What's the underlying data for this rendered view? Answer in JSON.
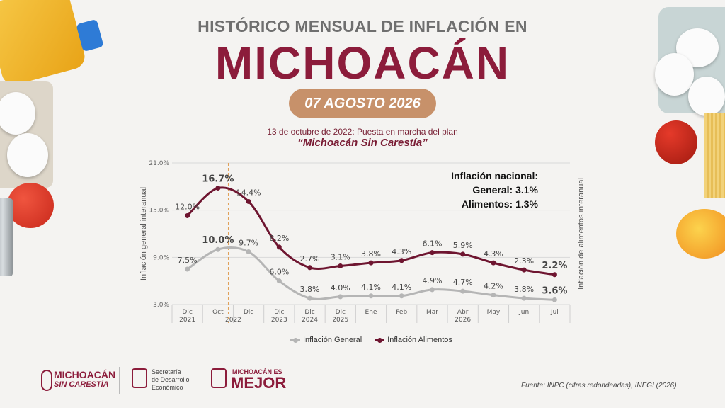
{
  "header": {
    "title_line1": "HISTÓRICO MENSUAL DE INFLACIÓN EN",
    "title_line2": "MICHOACÁN",
    "date": "07 AGOSTO 2026",
    "note_line1": "13 de octubre de 2022: Puesta en marcha del plan",
    "note_line2": "“Michoacán Sin Carestía”"
  },
  "national": {
    "title": "Inflación nacional:",
    "general": "General: 3.1%",
    "food": "Alimentos: 1.3%"
  },
  "colors": {
    "general": "#b5b5b5",
    "food": "#6e1530",
    "accent": "#8c1c3b",
    "marker_line": "#e0a15a"
  },
  "chart_data": {
    "type": "line",
    "ylabel_left": "Inflación general interanual",
    "ylabel_right": "Inflación de alimentos interanual",
    "ylim": [
      3.0,
      21.0
    ],
    "y_ticks": [
      "3.0%",
      "9.0%",
      "15.0%",
      "21.0%"
    ],
    "categories": [
      {
        "top": "Dic",
        "bottom": "2021"
      },
      {
        "top": "Oct",
        "bottom": ""
      },
      {
        "top": "Dic",
        "bottom": ""
      },
      {
        "top": "Dic",
        "bottom": "2023"
      },
      {
        "top": "Dic",
        "bottom": "2024"
      },
      {
        "top": "Dic",
        "bottom": "2025"
      },
      {
        "top": "Ene",
        "bottom": ""
      },
      {
        "top": "Feb",
        "bottom": ""
      },
      {
        "top": "Mar",
        "bottom": ""
      },
      {
        "top": "Abr",
        "bottom": "2026"
      },
      {
        "top": "May",
        "bottom": ""
      },
      {
        "top": "Jun",
        "bottom": ""
      },
      {
        "top": "Jul",
        "bottom": ""
      }
    ],
    "year_2022_label": "2022",
    "marker_category": "Oct",
    "series": [
      {
        "name": "Inflación General",
        "values": [
          7.5,
          10.0,
          9.7,
          6.0,
          3.8,
          4.0,
          4.1,
          4.1,
          4.9,
          4.7,
          4.2,
          3.8,
          3.6
        ],
        "labels": [
          "7.5%",
          "10.0%",
          "9.7%",
          "6.0%",
          "3.8%",
          "4.0%",
          "4.1%",
          "4.1%",
          "4.9%",
          "4.7%",
          "4.2%",
          "3.8%",
          "3.6%"
        ]
      },
      {
        "name": "Inflación Alimentos",
        "values": [
          14.3,
          17.8,
          16.1,
          10.3,
          7.7,
          7.9,
          8.3,
          8.6,
          9.6,
          9.4,
          8.3,
          7.4,
          6.8
        ],
        "labels": [
          "12.0%",
          "16.7%",
          "14.4%",
          "8.2%",
          "2.7%",
          "3.1%",
          "3.8%",
          "4.3%",
          "6.1%",
          "5.9%",
          "4.3%",
          "2.3%",
          "2.2%"
        ]
      }
    ],
    "grid": true,
    "legend": "bottom-center"
  },
  "footer": {
    "logo1_line1": "MICHOACÁN",
    "logo1_line2": "SIN CARESTÍA",
    "logo2_line1": "Secretaría",
    "logo2_line2": "de Desarrollo",
    "logo2_line3": "Económico",
    "logo3_top": "MICHOACÁN ES",
    "logo3_big": "MEJOR",
    "source": "Fuente: INPC (cifras redondeadas), INEGI (2026)"
  }
}
